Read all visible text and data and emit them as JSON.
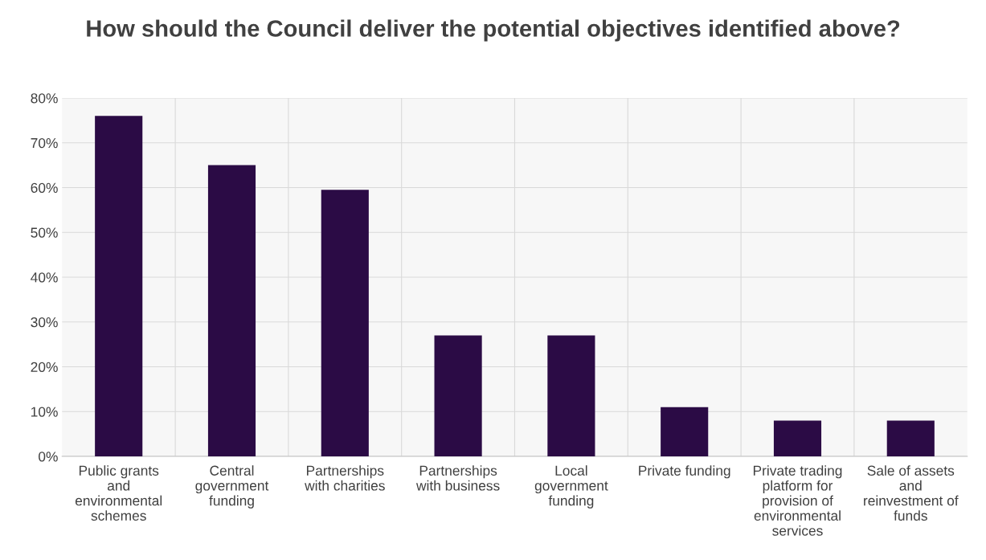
{
  "chart_data": {
    "type": "bar",
    "title": "How should the Council deliver the potential objectives identified above?",
    "categories": [
      "Public grants and environmental schemes",
      "Central government funding",
      "Partnerships with charities",
      "Partnerships with business",
      "Local government funding",
      "Private funding",
      "Private trading platform for provision of environmental services",
      "Sale of assets and reinvestment of funds"
    ],
    "values": [
      76,
      65,
      59.5,
      27,
      27,
      11,
      8,
      8
    ],
    "color": "#2b0b45",
    "ylim": [
      0,
      80
    ],
    "yticks": [
      {
        "value": 0,
        "label": "0%"
      },
      {
        "value": 10,
        "label": "10%"
      },
      {
        "value": 20,
        "label": "20%"
      },
      {
        "value": 30,
        "label": "30%"
      },
      {
        "value": 40,
        "label": "40%"
      },
      {
        "value": 50,
        "label": "50%"
      },
      {
        "value": 60,
        "label": "60%"
      },
      {
        "value": 70,
        "label": "70%"
      },
      {
        "value": 80,
        "label": "80%"
      }
    ],
    "grid": "y"
  }
}
